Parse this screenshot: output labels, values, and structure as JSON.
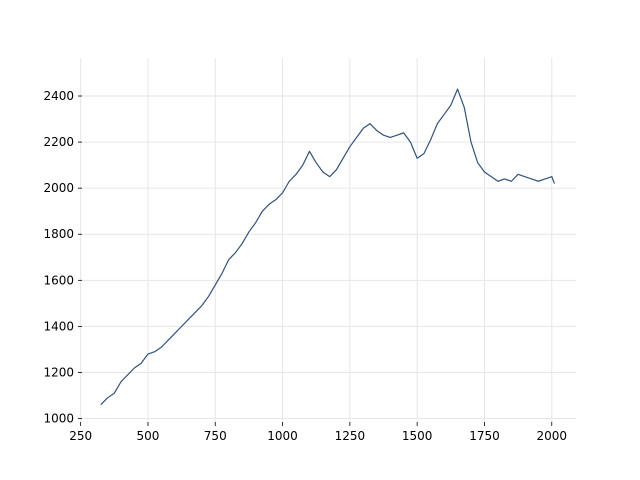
{
  "chart_data": {
    "type": "line",
    "title": "",
    "xlabel": "",
    "ylabel": "",
    "xlim": [
      255,
      2090
    ],
    "ylim": [
      985,
      2565
    ],
    "x_ticks": [
      250,
      500,
      750,
      1000,
      1250,
      1500,
      1750,
      2000
    ],
    "y_ticks": [
      1000,
      1200,
      1400,
      1600,
      1800,
      2000,
      2200,
      2400
    ],
    "grid": true,
    "legend": "none",
    "line_color": "#34527a",
    "grid_color": "#e6e6e6",
    "series": [
      {
        "x": [
          325,
          350,
          375,
          400,
          425,
          450,
          475,
          500,
          525,
          550,
          575,
          600,
          625,
          650,
          675,
          700,
          725,
          750,
          775,
          800,
          825,
          850,
          875,
          900,
          925,
          950,
          975,
          1000,
          1025,
          1050,
          1075,
          1100,
          1125,
          1150,
          1175,
          1200,
          1225,
          1250,
          1275,
          1300,
          1325,
          1350,
          1375,
          1400,
          1425,
          1450,
          1475,
          1500,
          1525,
          1550,
          1575,
          1600,
          1625,
          1650,
          1675,
          1700,
          1725,
          1750,
          1775,
          1800,
          1825,
          1850,
          1875,
          1900,
          1925,
          1950,
          1975,
          2000,
          2010
        ],
        "values": [
          1060,
          1090,
          1110,
          1160,
          1190,
          1220,
          1240,
          1280,
          1290,
          1310,
          1340,
          1370,
          1400,
          1430,
          1460,
          1490,
          1530,
          1580,
          1630,
          1690,
          1720,
          1760,
          1810,
          1850,
          1900,
          1930,
          1950,
          1980,
          2030,
          2060,
          2100,
          2160,
          2110,
          2070,
          2050,
          2080,
          2130,
          2180,
          2220,
          2260,
          2280,
          2250,
          2230,
          2220,
          2230,
          2240,
          2200,
          2130,
          2150,
          2210,
          2280,
          2320,
          2360,
          2430,
          2350,
          2200,
          2110,
          2070,
          2050,
          2030,
          2040,
          2030,
          2060,
          2050,
          2040,
          2030,
          2040,
          2050,
          2020
        ]
      }
    ]
  }
}
